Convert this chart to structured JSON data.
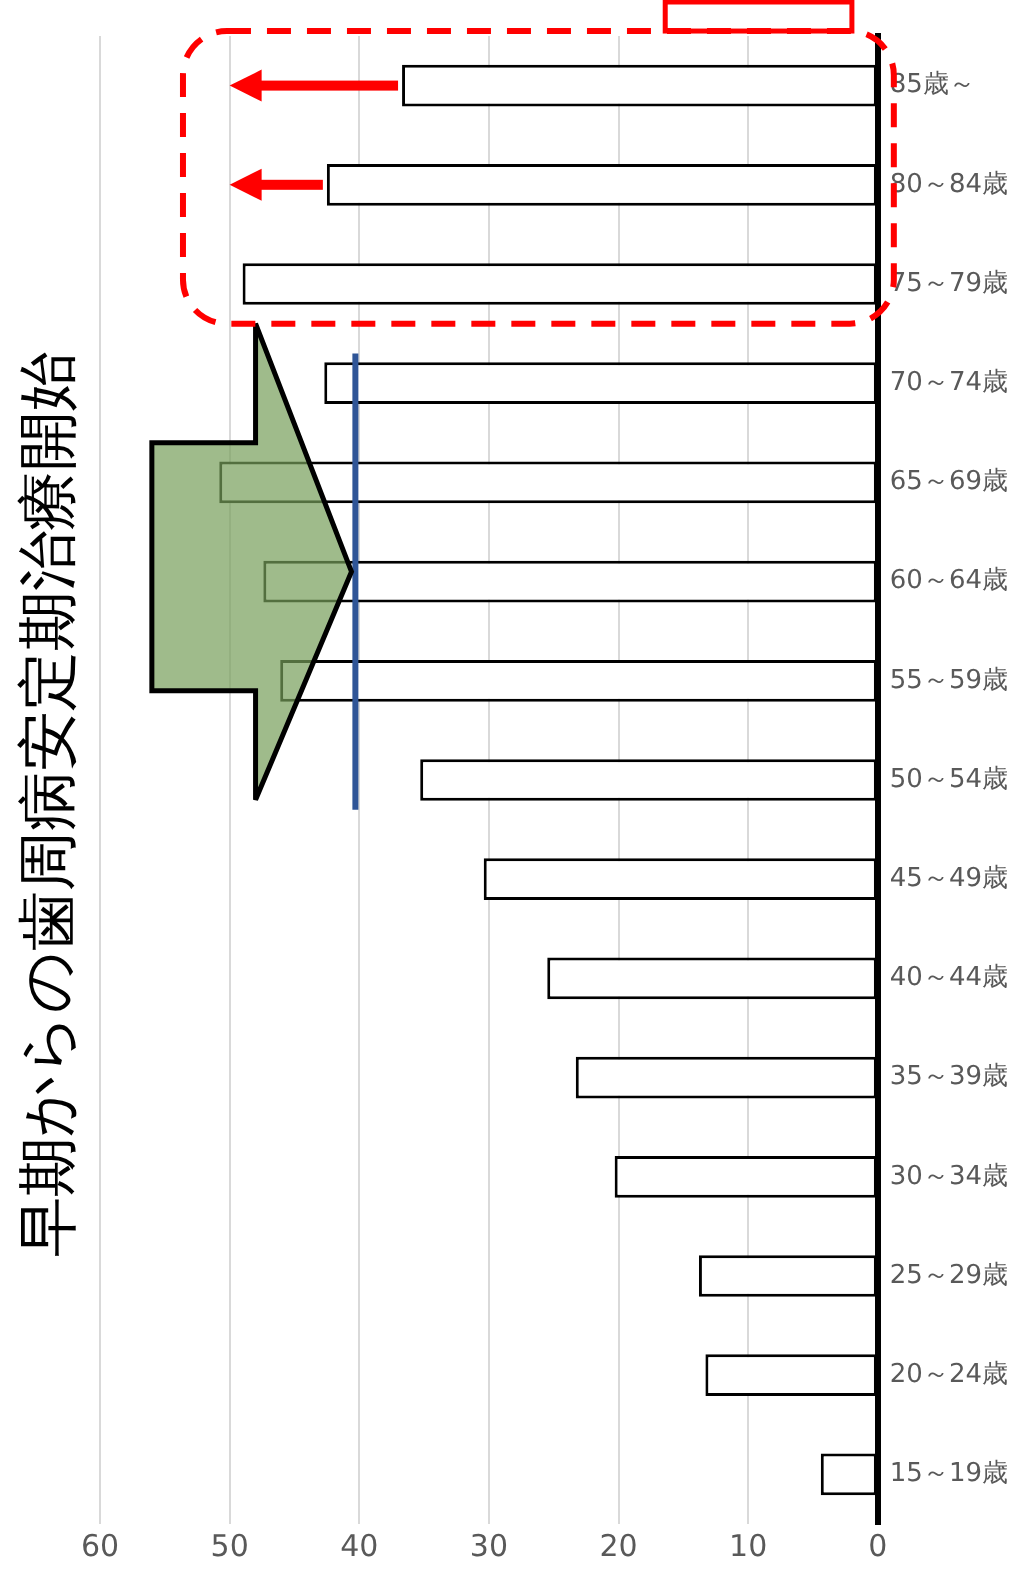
{
  "chart_data": {
    "type": "bar",
    "orientation": "horizontal",
    "title": "早期からの歯周病安定期治療開始",
    "categories": [
      "85歳～",
      "80～84歳",
      "75～79歳",
      "70～74歳",
      "65～69歳",
      "60～64歳",
      "55～59歳",
      "50～54歳",
      "45～49歳",
      "40～44歳",
      "35～39歳",
      "30～34歳",
      "25～29歳",
      "20～24歳",
      "15～19歳"
    ],
    "values": [
      36.7,
      42.5,
      49.0,
      42.7,
      50.8,
      47.4,
      46.1,
      35.3,
      30.4,
      25.5,
      23.3,
      20.3,
      13.8,
      13.3,
      4.4
    ],
    "color": "#ffffff",
    "xlim": [
      60,
      0
    ],
    "xticks": [
      0,
      10,
      20,
      30,
      40,
      50,
      60
    ],
    "ref_lines": [
      {
        "axis": "x",
        "value": 40.3,
        "color": "#2f5597"
      }
    ],
    "grid": "x",
    "legend": false
  }
}
